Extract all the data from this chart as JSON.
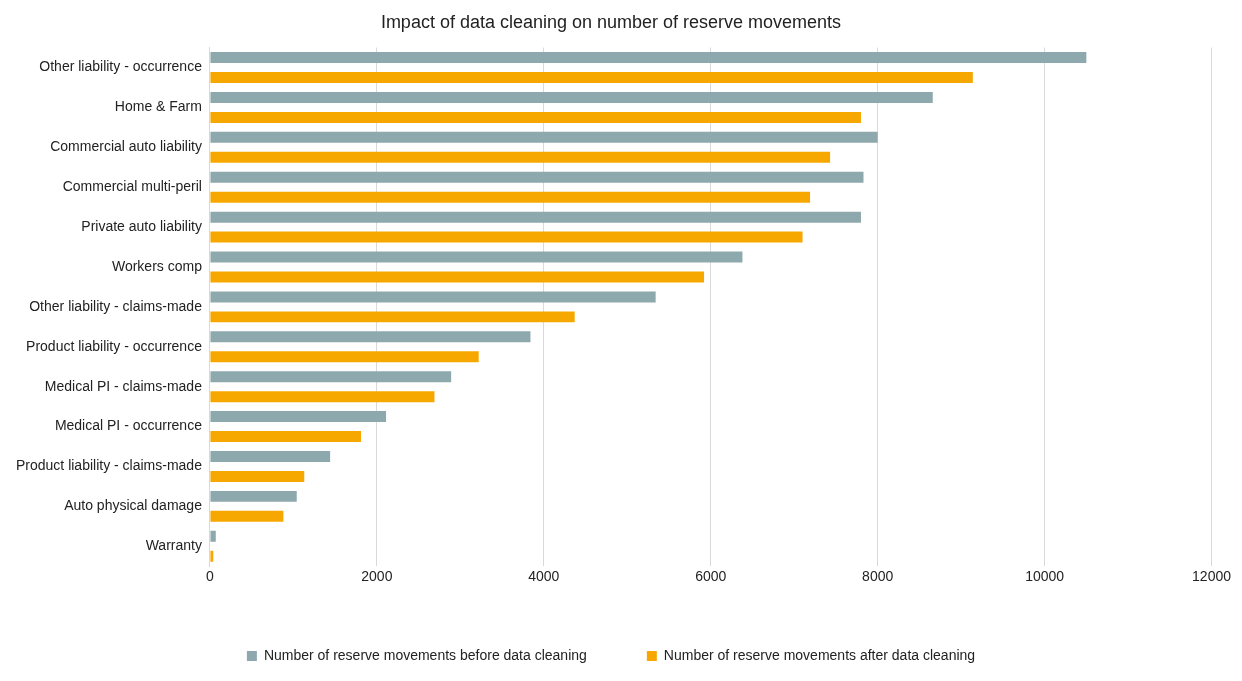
{
  "chart_data": {
    "type": "bar",
    "orientation": "horizontal",
    "title": "Impact of data cleaning on number of reserve movements",
    "categories": [
      "Other liability - occurrence",
      "Home & Farm",
      "Commercial auto liability",
      "Commercial multi-peril",
      "Private auto liability",
      "Workers comp",
      "Other liability - claims-made",
      "Product liability - occurrence",
      "Medical PI - claims-made",
      "Medical PI - occurrence",
      "Product liability - claims-made",
      "Auto physical damage",
      "Warranty"
    ],
    "series": [
      {
        "name": "Number of reserve movements before data cleaning",
        "color": "#8ea9ad",
        "values": [
          10500,
          8660,
          8000,
          7830,
          7800,
          6380,
          5340,
          3840,
          2890,
          2110,
          1440,
          1040,
          70
        ]
      },
      {
        "name": "Number of reserve movements after data cleaning",
        "color": "#f7a800",
        "values": [
          9140,
          7800,
          7430,
          7190,
          7100,
          5920,
          4370,
          3220,
          2690,
          1810,
          1130,
          880,
          40
        ]
      }
    ],
    "xlim": [
      0,
      12000
    ],
    "xticks": [
      0,
      2000,
      4000,
      6000,
      8000,
      10000,
      12000
    ],
    "grid": "x",
    "legend": "bottom"
  }
}
